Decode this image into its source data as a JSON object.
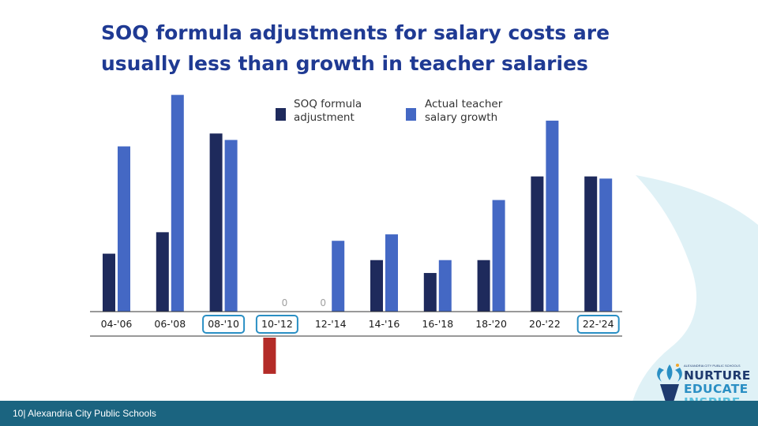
{
  "slide": {
    "title": "SOQ formula adjustments for salary costs are usually less than growth in teacher salaries"
  },
  "footer": {
    "page_number": "10",
    "organization": "| Alexandria City Public Schools"
  },
  "logo": {
    "top_text": "ALEXANDRIA CITY PUBLIC SCHOOLS",
    "words": [
      "NURTURE",
      "EDUCATE",
      "INSPIRE"
    ]
  },
  "colors": {
    "title": "#1f3a93",
    "soq_bar": "#1e2a5c",
    "salary_bar": "#4468c4",
    "negative_bar": "#b32b27",
    "highlight_box": "#2a8fc4",
    "footer_bar": "#1b6480",
    "decor_wave": "#dff1f6"
  },
  "chart_data": {
    "type": "bar",
    "categories": [
      "04-'06",
      "06-'08",
      "08-'10",
      "10-'12",
      "12-'14",
      "14-'16",
      "16-'18",
      "18-'20",
      "20-'22",
      "22-'24"
    ],
    "series": [
      {
        "name": "SOQ formula adjustment",
        "values": [
          2.7,
          3.7,
          8.3,
          -2.9,
          0,
          2.4,
          1.8,
          2.4,
          6.3,
          6.3
        ]
      },
      {
        "name": "Actual teacher salary growth",
        "values": [
          7.7,
          10.1,
          8.0,
          0,
          3.3,
          3.6,
          2.4,
          5.2,
          8.9,
          6.2
        ]
      }
    ],
    "zero_labels": [
      "0",
      "0"
    ],
    "highlighted_categories": [
      "08-'10",
      "10-'12",
      "22-'24"
    ],
    "legend": [
      {
        "lines": [
          "SOQ formula",
          "adjustment"
        ]
      },
      {
        "lines": [
          "Actual teacher",
          "salary growth"
        ]
      }
    ],
    "legend_position": "top-center",
    "ylim": [
      -3,
      10.5
    ],
    "grid": false,
    "y_axis_visible": false
  }
}
